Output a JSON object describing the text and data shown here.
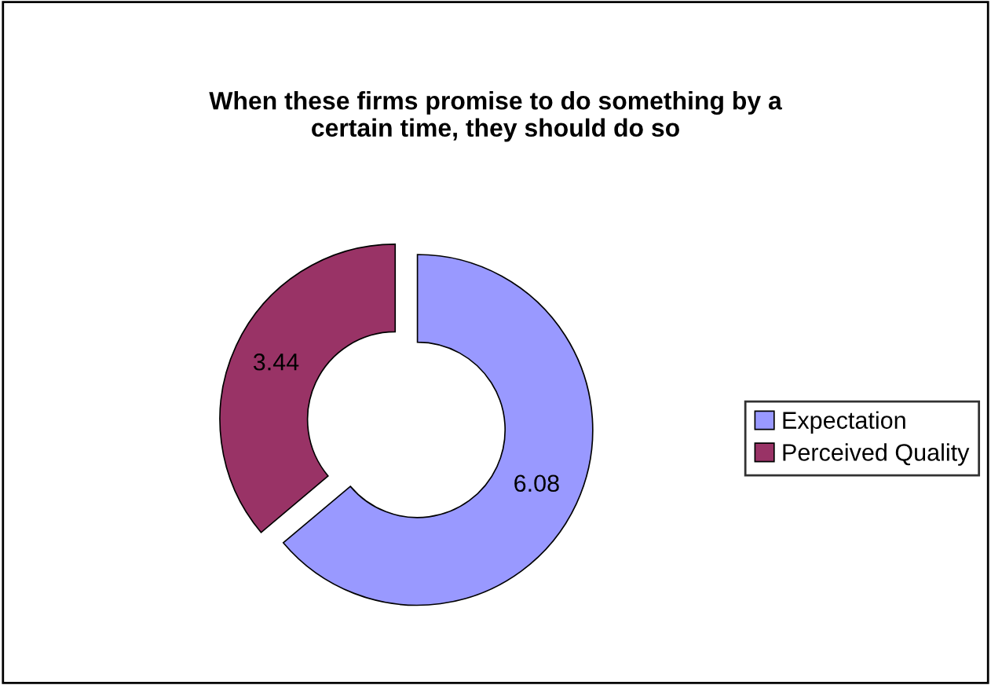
{
  "chart_data": {
    "type": "donut",
    "title": "When these firms promise to do something by a\ncertain time, they should do so",
    "categories": [
      "Expectation",
      "Perceived Quality"
    ],
    "values": [
      6.08,
      3.44
    ],
    "colors": [
      "#9999ff",
      "#993366"
    ],
    "data_labels": true,
    "legend": "right"
  }
}
